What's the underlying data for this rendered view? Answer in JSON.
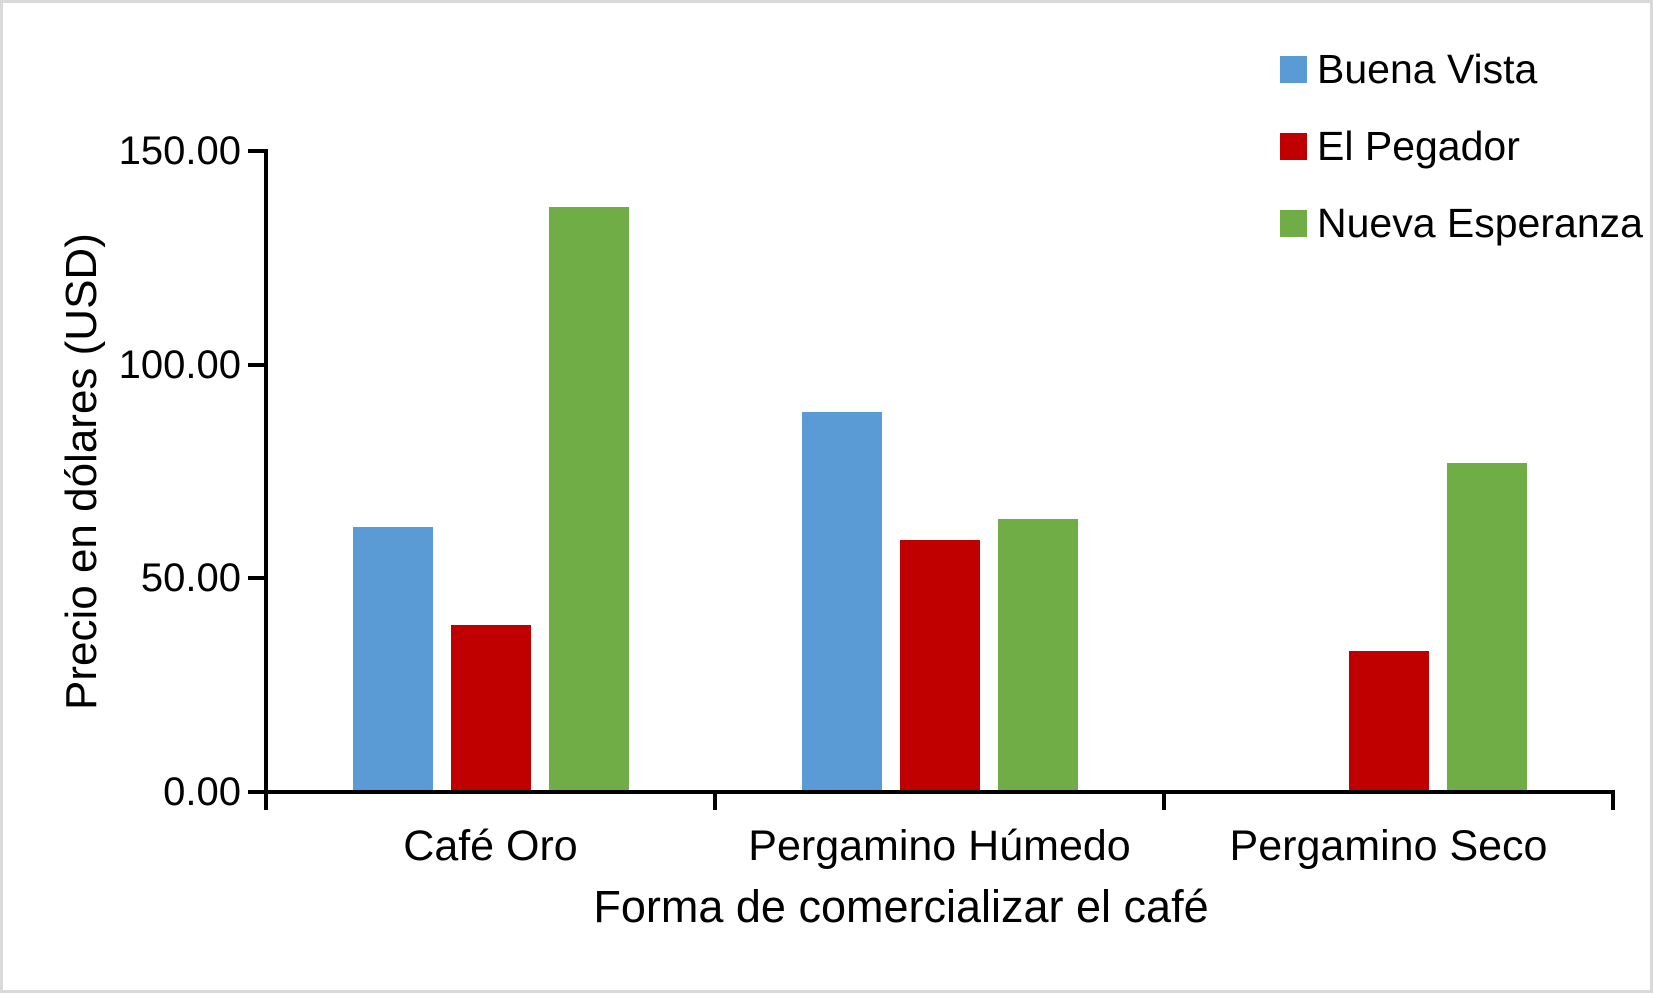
{
  "chart_data": {
    "type": "bar",
    "title": "",
    "xlabel": "Forma de comercializar el café",
    "ylabel": "Precio en dólares (USD)",
    "categories": [
      "Café Oro",
      "Pergamino Húmedo",
      "Pergamino Seco"
    ],
    "series": [
      {
        "name": "Buena Vista",
        "color": "#5B9BD5",
        "values": [
          62,
          89,
          0
        ]
      },
      {
        "name": "El Pegador",
        "color": "#C00000",
        "values": [
          39,
          59,
          33
        ]
      },
      {
        "name": "Nueva Esperanza",
        "color": "#70AD47",
        "values": [
          137,
          64,
          77
        ]
      }
    ],
    "ylim": [
      0,
      150
    ],
    "ytick_values": [
      0,
      50,
      100,
      150
    ],
    "ytick_labels": [
      "0.00",
      "50.00",
      "100.00",
      "150.00"
    ],
    "grid": "off",
    "legend_position": "top-right",
    "bar_orientation": "vertical"
  },
  "style": {
    "background": "#FFFFFF",
    "frame_border_color": "#D9D9D9",
    "axis_color": "#000000",
    "text_color": "#000000"
  }
}
